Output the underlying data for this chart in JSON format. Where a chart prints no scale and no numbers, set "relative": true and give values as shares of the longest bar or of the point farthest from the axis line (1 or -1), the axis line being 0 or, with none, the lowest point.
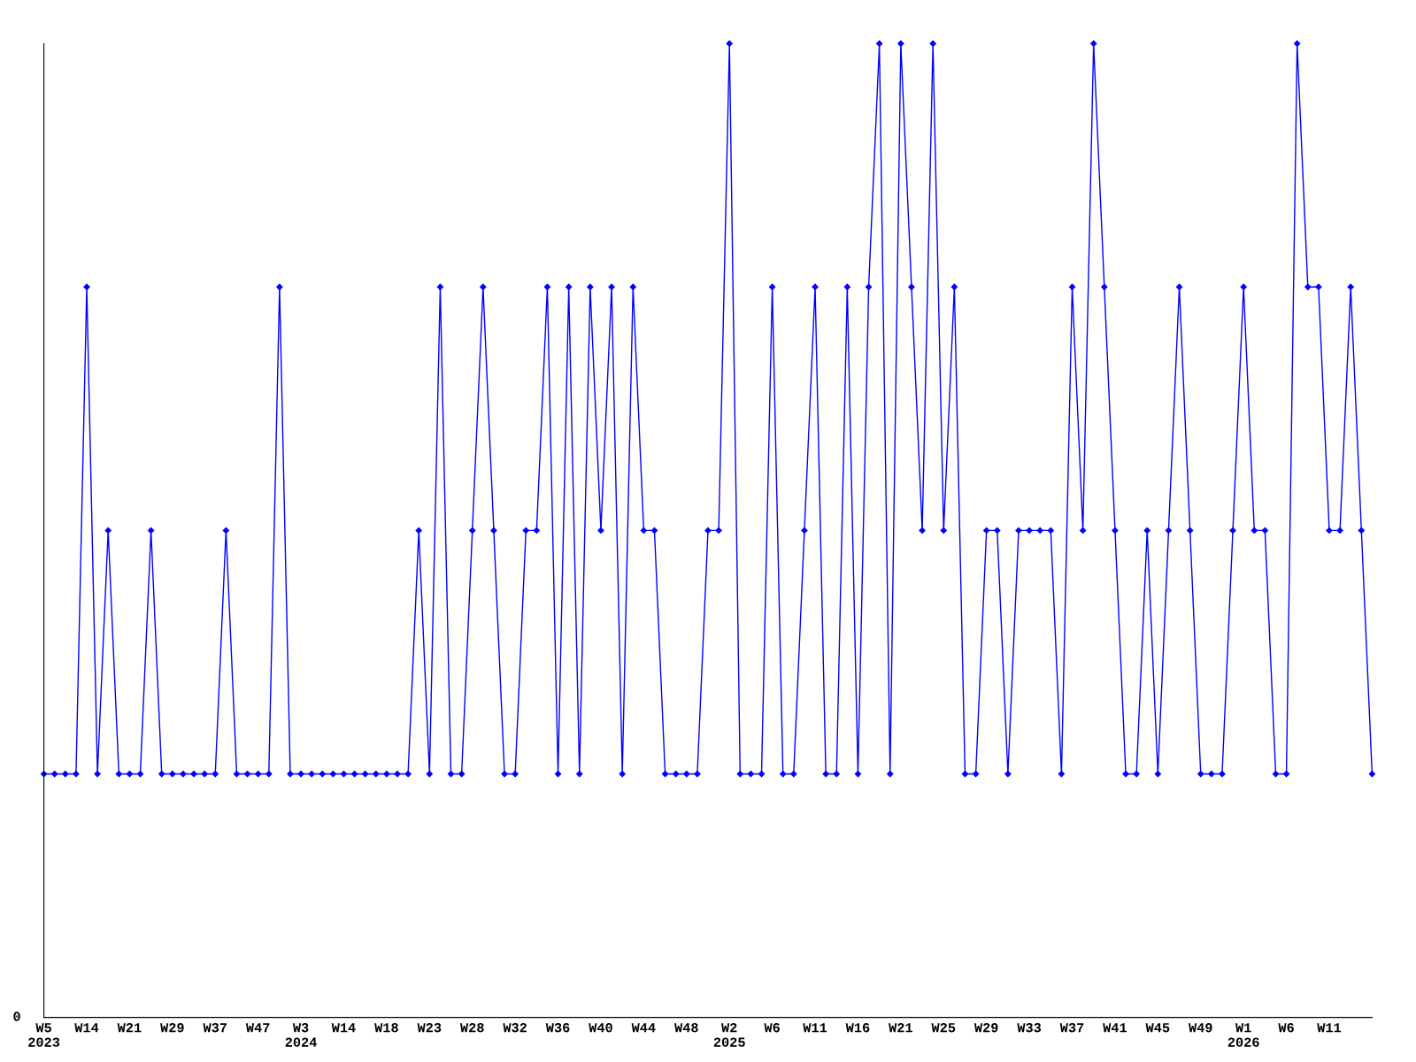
{
  "chart_data": {
    "type": "line",
    "relative": true,
    "color": "#0000ff",
    "marker": "diamond",
    "line_style": "solid",
    "grid": false,
    "legend": false,
    "categories": [
      "W5\n2023",
      null,
      null,
      null,
      "W14",
      null,
      null,
      null,
      "W21",
      null,
      null,
      null,
      "W29",
      null,
      null,
      null,
      "W37",
      null,
      null,
      null,
      "W47",
      null,
      null,
      null,
      "W3\n2024",
      null,
      null,
      null,
      "W14",
      null,
      null,
      null,
      "W18",
      null,
      null,
      null,
      "W23",
      null,
      null,
      null,
      "W28",
      null,
      null,
      null,
      "W32",
      null,
      null,
      null,
      "W36",
      null,
      null,
      null,
      "W40",
      null,
      null,
      null,
      "W44",
      null,
      null,
      null,
      "W48",
      null,
      null,
      null,
      "W2\n2025",
      null,
      null,
      null,
      "W6",
      null,
      null,
      null,
      "W11",
      null,
      null,
      null,
      "W16",
      null,
      null,
      null,
      "W21",
      null,
      null,
      null,
      "W25",
      null,
      null,
      null,
      "W29",
      null,
      null,
      null,
      "W33",
      null,
      null,
      null,
      "W37",
      null,
      null,
      null,
      "W41",
      null,
      null,
      null,
      "W45",
      null,
      null,
      null,
      "W49",
      null,
      null,
      null,
      "W1\n2026",
      null,
      null,
      null,
      "W6",
      null,
      null,
      null,
      "W11",
      null,
      null,
      null,
      null
    ],
    "values": [
      0.25,
      0.25,
      0.25,
      0.25,
      0.75,
      0.25,
      0.5,
      0.25,
      0.25,
      0.25,
      0.5,
      0.25,
      0.25,
      0.25,
      0.25,
      0.25,
      0.25,
      0.5,
      0.25,
      0.25,
      0.25,
      0.25,
      0.75,
      0.25,
      0.25,
      0.25,
      0.25,
      0.25,
      0.25,
      0.25,
      0.25,
      0.25,
      0.25,
      0.25,
      0.25,
      0.5,
      0.25,
      0.75,
      0.25,
      0.25,
      0.5,
      0.75,
      0.5,
      0.25,
      0.25,
      0.5,
      0.5,
      0.75,
      0.25,
      0.75,
      0.25,
      0.75,
      0.5,
      0.75,
      0.25,
      0.75,
      0.5,
      0.5,
      0.25,
      0.25,
      0.25,
      0.25,
      0.5,
      0.5,
      1,
      0.25,
      0.25,
      0.25,
      0.75,
      0.25,
      0.25,
      0.5,
      0.75,
      0.25,
      0.25,
      0.75,
      0.25,
      0.75,
      1,
      0.25,
      1,
      0.75,
      0.5,
      1,
      0.5,
      0.75,
      0.25,
      0.25,
      0.5,
      0.5,
      0.25,
      0.5,
      0.5,
      0.5,
      0.5,
      0.25,
      0.75,
      0.5,
      1,
      0.75,
      0.5,
      0.25,
      0.25,
      0.5,
      0.25,
      0.5,
      0.75,
      0.5,
      0.25,
      0.25,
      0.25,
      0.5,
      0.75,
      0.5,
      0.5,
      0.25,
      0.25,
      1,
      0.75,
      0.75,
      0.5,
      0.5,
      0.75,
      0.5,
      0.25
    ],
    "annotations": [
      "0"
    ]
  }
}
